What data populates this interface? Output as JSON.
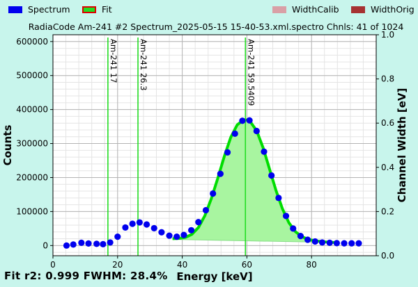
{
  "legend": {
    "spectrum": {
      "label": "Spectrum",
      "color": "#0000ee"
    },
    "fit": {
      "label": "Fit",
      "color": "#22dd22",
      "border": "#dd0000"
    },
    "width_calib": {
      "label": "WidthCalib",
      "color": "#d9a0a6"
    },
    "width_orig": {
      "label": "WidthOrig",
      "color": "#a63232"
    }
  },
  "chart_data": {
    "type": "scatter",
    "title": "RadiaCode Am-241 #2 Spectrum_2025-05-15 15-40-53.xml.spectro  Chnls: 41 of 1024",
    "xlabel": "Energy [keV]",
    "ylabel": "Counts",
    "y2label": "Channel Width [eV]",
    "xlim": [
      0,
      100
    ],
    "ylim": [
      -30000,
      620000
    ],
    "y2lim": [
      0.0,
      1.0
    ],
    "xticks": [
      0,
      20,
      40,
      60,
      80
    ],
    "yticks": [
      0,
      100000,
      200000,
      300000,
      400000,
      500000,
      600000
    ],
    "y2ticks": [
      "0.0",
      "0.2",
      "0.4",
      "0.6",
      "0.8",
      "1.0"
    ],
    "grid": true,
    "legend_position": "top",
    "series": [
      {
        "name": "Spectrum",
        "color": "#0000ee",
        "x": [
          4.2,
          6.3,
          8.8,
          11.0,
          13.5,
          15.5,
          17.7,
          20.0,
          22.4,
          24.6,
          26.8,
          29.0,
          31.3,
          33.6,
          36.0,
          38.3,
          40.5,
          42.8,
          45.0,
          47.3,
          49.5,
          51.8,
          54.0,
          56.3,
          58.6,
          60.8,
          63.0,
          65.3,
          67.6,
          69.8,
          72.1,
          74.3,
          76.6,
          78.8,
          81.1,
          83.3,
          85.6,
          87.8,
          90.1,
          92.4,
          94.6
        ],
        "y": [
          0,
          3000,
          8000,
          6000,
          5000,
          4000,
          9000,
          26000,
          53000,
          64000,
          68000,
          62000,
          51000,
          39000,
          29000,
          26000,
          31000,
          45000,
          69000,
          104000,
          153000,
          211000,
          274000,
          329000,
          367000,
          368000,
          337000,
          276000,
          206000,
          140000,
          87000,
          50000,
          28000,
          17000,
          12000,
          9000,
          8000,
          7000,
          6500,
          6500,
          6500
        ]
      },
      {
        "name": "Fit",
        "color": "#00dd00",
        "x": [
          37,
          39,
          41,
          43,
          45,
          47,
          49,
          51,
          53,
          55,
          57,
          59,
          60,
          61,
          63,
          65,
          67,
          69,
          71,
          73,
          75,
          77,
          79,
          81,
          83,
          85,
          87
        ],
        "y": [
          20000,
          21000,
          24000,
          33000,
          53000,
          88000,
          138000,
          198000,
          262000,
          318000,
          355000,
          370000,
          369000,
          365000,
          338000,
          288000,
          225000,
          162000,
          108000,
          67000,
          41000,
          26000,
          18000,
          14000,
          12000,
          10000,
          9000
        ]
      }
    ],
    "baseline": {
      "x": [
        37,
        87
      ],
      "y": [
        18000,
        9000
      ]
    },
    "markers": [
      {
        "x": 17.0,
        "label": "Am-241  17"
      },
      {
        "x": 26.3,
        "label": "Am-241  26.3"
      },
      {
        "x": 59.5409,
        "label": "Am-241  59.5409"
      }
    ],
    "marker_color": "#22dd22"
  },
  "footer": {
    "fit_text": "Fit r2: 0.999  FWHM: 28.4%"
  }
}
